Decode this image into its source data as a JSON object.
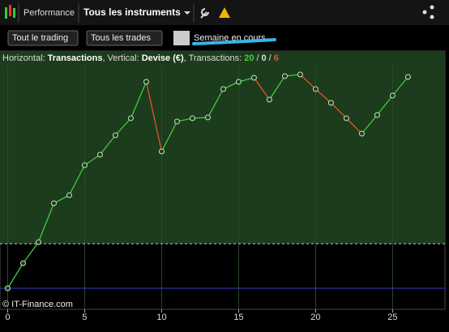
{
  "toolbar": {
    "tab": "Performance",
    "instruments": "Tous les instruments"
  },
  "filters": {
    "trading": "Tout le trading",
    "trades": "Tous les trades",
    "period": "Semaine en cours"
  },
  "chart_data": {
    "type": "line",
    "header": {
      "h_label": "Horizontal:",
      "h_value": "Transactions",
      "v_label": ", Vertical:",
      "v_value": "Devise (€)",
      "t_label": ", Transactions:",
      "wins": 20,
      "sep1": "/",
      "neutral": 0,
      "sep2": "/",
      "losses": 6
    },
    "x": [
      0,
      1,
      2,
      3,
      4,
      5,
      6,
      7,
      8,
      9,
      10,
      11,
      12,
      13,
      14,
      15,
      16,
      17,
      18,
      19,
      20,
      21,
      22,
      23,
      24,
      25,
      26
    ],
    "values": [
      0,
      3.1,
      5.7,
      10.5,
      11.5,
      15.2,
      16.5,
      18.9,
      21.0,
      25.5,
      16.9,
      20.6,
      21.0,
      21.1,
      24.6,
      25.5,
      26.0,
      23.3,
      26.2,
      26.4,
      24.6,
      22.9,
      21.0,
      19.1,
      21.4,
      23.8,
      26.1
    ],
    "up_color": "#3ecf3e",
    "down_color": "#e0562a",
    "xlim": [
      -0.5,
      28.4
    ],
    "ylim": [
      -2.6,
      27.6
    ],
    "xticks": [
      0,
      5,
      10,
      15,
      20,
      25
    ],
    "reference_line": 5.5,
    "baseline": 0,
    "watermark": "© IT-Finance.com"
  }
}
